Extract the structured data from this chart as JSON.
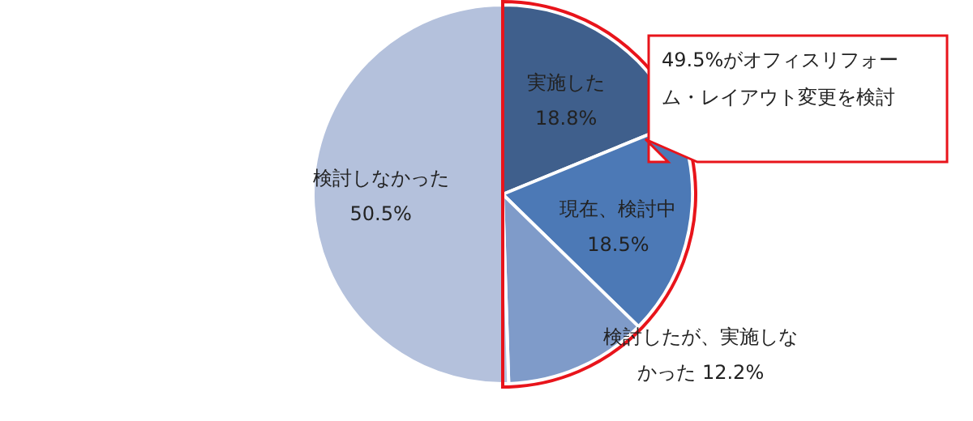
{
  "chart_data": {
    "type": "pie",
    "categories": [
      "実施した",
      "現在、検討中",
      "検討したが、実施しなかった",
      "検討しなかった"
    ],
    "values": [
      18.8,
      18.5,
      12.2,
      50.5
    ],
    "value_labels": [
      "18.8%",
      "18.5%",
      "12.2%",
      "50.5%"
    ],
    "colors": [
      "#3f5f8c",
      "#4c79b6",
      "#7f9bc9",
      "#b4c1dc"
    ],
    "annotations": [
      "49.5%がオフィスリフォーム・レイアウト変更を検討"
    ]
  }
}
